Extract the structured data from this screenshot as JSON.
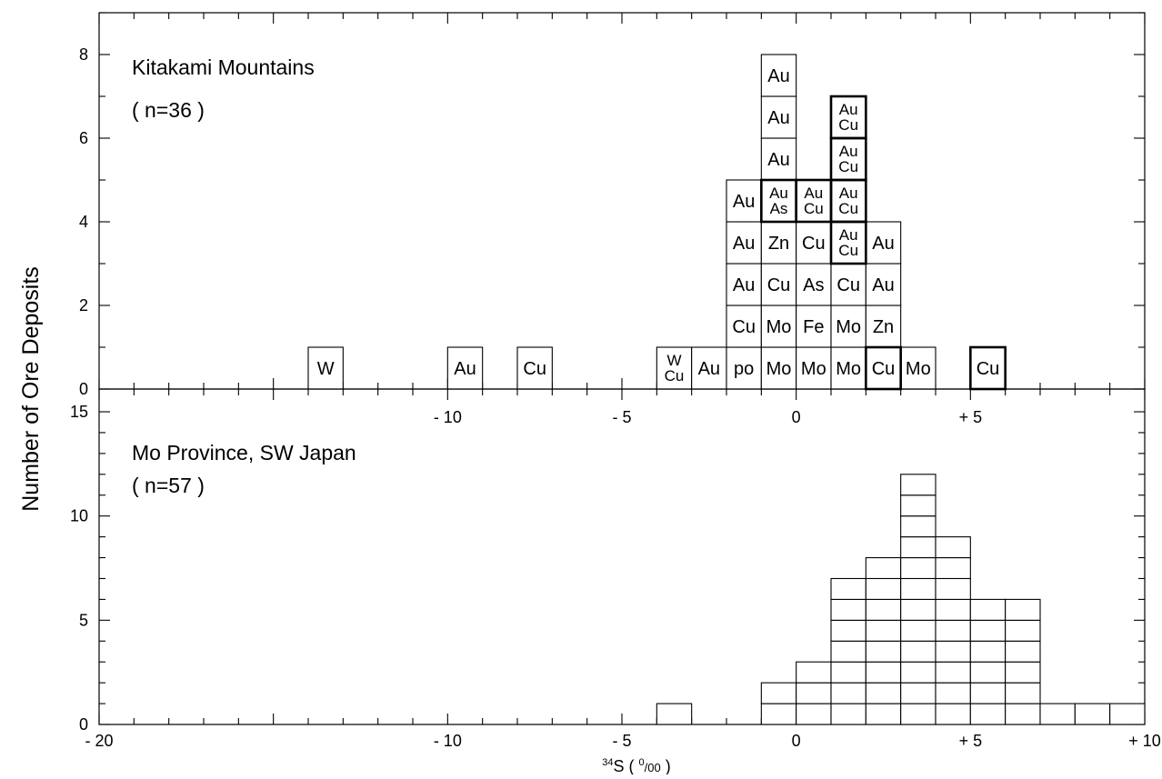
{
  "chart_data": [
    {
      "type": "histogram",
      "title": "Kitakami Mountains",
      "subtitle": "( n=36 )",
      "ylabel": "Number of Ore Deposits",
      "xlabel": "34S (0/00)",
      "xlim": [
        -20,
        10
      ],
      "ylim": [
        0,
        9
      ],
      "bin_width": 1,
      "x_tick_labels": [
        {
          "value": -10,
          "label": "- 10"
        },
        {
          "value": -5,
          "label": "- 5"
        },
        {
          "value": 0,
          "label": "0"
        },
        {
          "value": 5,
          "label": "+ 5"
        }
      ],
      "y_tick_labels": [
        {
          "value": 0,
          "label": "0"
        },
        {
          "value": 2,
          "label": "2"
        },
        {
          "value": 4,
          "label": "4"
        },
        {
          "value": 6,
          "label": "6"
        },
        {
          "value": 8,
          "label": "8"
        }
      ],
      "bins": [
        {
          "x0": -14,
          "counts_bottom_up": [
            "W"
          ],
          "bold": [
            false
          ]
        },
        {
          "x0": -10,
          "counts_bottom_up": [
            "Au"
          ],
          "bold": [
            false
          ]
        },
        {
          "x0": -8,
          "counts_bottom_up": [
            "Cu"
          ],
          "bold": [
            false
          ]
        },
        {
          "x0": -4,
          "counts_bottom_up": [
            "W\nCu"
          ],
          "bold": [
            false
          ]
        },
        {
          "x0": -3,
          "counts_bottom_up": [
            "Au"
          ],
          "bold": [
            false
          ]
        },
        {
          "x0": -2,
          "counts_bottom_up": [
            "po",
            "Cu",
            "Au",
            "Au",
            "Au"
          ],
          "bold": [
            false,
            false,
            false,
            false,
            false
          ]
        },
        {
          "x0": -1,
          "counts_bottom_up": [
            "Mo",
            "Mo",
            "Cu",
            "Zn",
            "Au\nAs",
            "Au",
            "Au",
            "Au"
          ],
          "bold": [
            false,
            false,
            false,
            false,
            true,
            false,
            false,
            false
          ]
        },
        {
          "x0": 0,
          "counts_bottom_up": [
            "Mo",
            "Fe",
            "As",
            "Cu",
            "Au\nCu"
          ],
          "bold": [
            false,
            false,
            false,
            false,
            true
          ]
        },
        {
          "x0": 1,
          "counts_bottom_up": [
            "Mo",
            "Mo",
            "Cu",
            "Au\nCu",
            "Au\nCu",
            "Au\nCu",
            "Au\nCu"
          ],
          "bold": [
            false,
            false,
            false,
            true,
            true,
            true,
            true
          ]
        },
        {
          "x0": 2,
          "counts_bottom_up": [
            "Cu",
            "Zn",
            "Au",
            "Au"
          ],
          "bold": [
            true,
            false,
            false,
            false
          ]
        },
        {
          "x0": 3,
          "counts_bottom_up": [
            "Mo"
          ],
          "bold": [
            false
          ]
        },
        {
          "x0": 5,
          "counts_bottom_up": [
            "Cu"
          ],
          "bold": [
            true
          ]
        }
      ]
    },
    {
      "type": "histogram",
      "title": "Mo Province, SW Japan",
      "subtitle": "( n=57 )",
      "ylabel": "Number of Ore Deposits",
      "xlabel": "34S (0/00)",
      "xlim": [
        -20,
        10
      ],
      "ylim": [
        0,
        15
      ],
      "bin_width": 1,
      "x_tick_labels": [
        {
          "value": -20,
          "label": "- 20"
        },
        {
          "value": -10,
          "label": "- 10"
        },
        {
          "value": -5,
          "label": "- 5"
        },
        {
          "value": 0,
          "label": "0"
        },
        {
          "value": 5,
          "label": "+ 5"
        },
        {
          "value": 10,
          "label": "+ 10"
        }
      ],
      "y_tick_labels": [
        {
          "value": 0,
          "label": "0"
        },
        {
          "value": 5,
          "label": "5"
        },
        {
          "value": 10,
          "label": "10"
        },
        {
          "value": 15,
          "label": "15"
        }
      ],
      "bins": [
        {
          "x0": -4,
          "count": 1
        },
        {
          "x0": -1,
          "count": 2
        },
        {
          "x0": 0,
          "count": 3
        },
        {
          "x0": 1,
          "count": 7
        },
        {
          "x0": 2,
          "count": 8
        },
        {
          "x0": 3,
          "count": 12
        },
        {
          "x0": 4,
          "count": 9
        },
        {
          "x0": 5,
          "count": 6
        },
        {
          "x0": 6,
          "count": 6
        },
        {
          "x0": 7,
          "count": 1
        },
        {
          "x0": 8,
          "count": 1
        },
        {
          "x0": 9,
          "count": 1
        }
      ]
    }
  ],
  "labels": {
    "ylabel": "Number of Ore Deposits",
    "xlabel_sup": "34",
    "xlabel_main": "S ( ",
    "xlabel_unit_sup": "0",
    "xlabel_unit": "/00",
    "xlabel_close": " )"
  }
}
